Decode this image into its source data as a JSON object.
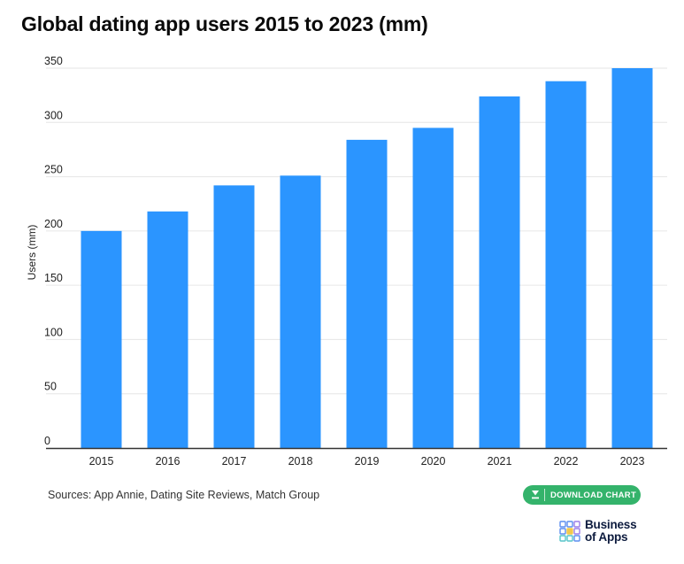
{
  "title": "Global dating app users 2015 to 2023 (mm)",
  "sources_text": "Sources: App Annie, Dating Site Reviews, Match Group",
  "download_label": "DOWNLOAD CHART",
  "brand": {
    "line1": "Business",
    "line2": "of Apps"
  },
  "colors": {
    "bar": "#2b95ff",
    "download_button": "#34b36b",
    "grid": "#e6e6e6",
    "axis": "#333333"
  },
  "chart_data": {
    "type": "bar",
    "title": "Global dating app users 2015 to 2023 (mm)",
    "xlabel": "",
    "ylabel": "Users (mm)",
    "categories": [
      "2015",
      "2016",
      "2017",
      "2018",
      "2019",
      "2020",
      "2021",
      "2022",
      "2023"
    ],
    "values": [
      200,
      218,
      242,
      251,
      284,
      295,
      324,
      338,
      350
    ],
    "ylim": [
      0,
      350
    ],
    "yticks": [
      0,
      50,
      100,
      150,
      200,
      250,
      300,
      350
    ],
    "grid": true,
    "legend": "none"
  }
}
